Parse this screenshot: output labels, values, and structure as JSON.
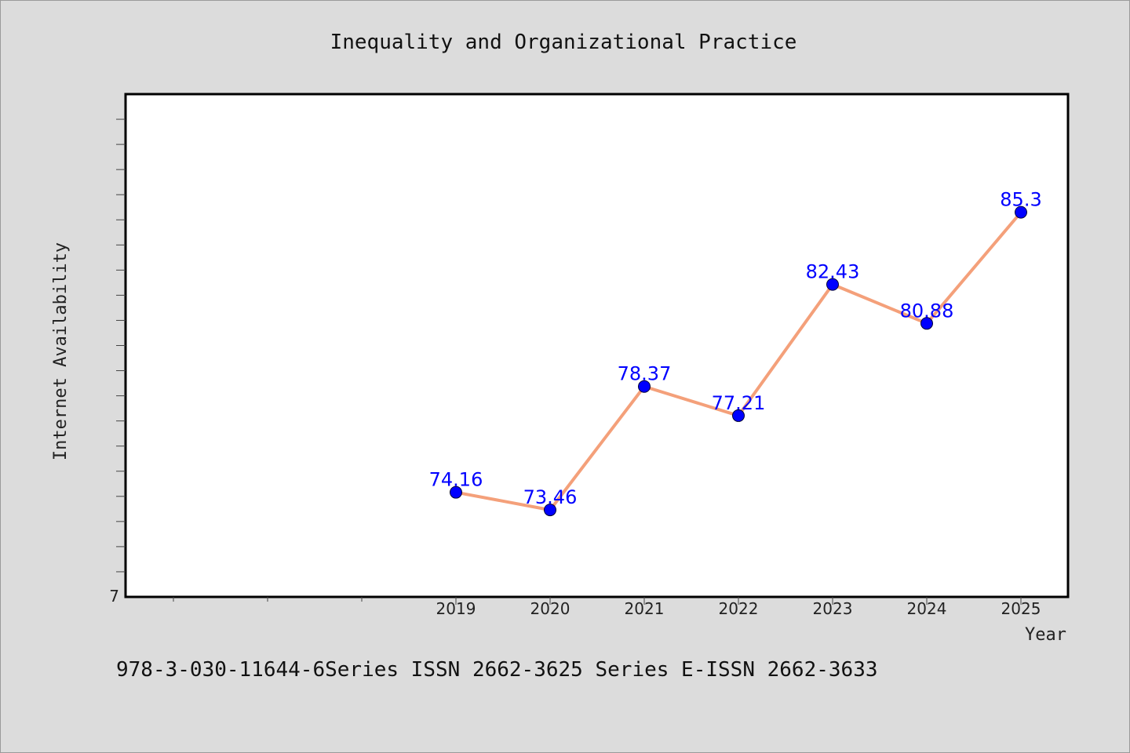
{
  "chart_data": {
    "type": "line",
    "title": "Inequality and Organizational Practice",
    "xlabel": "Year",
    "ylabel": "Internet Availability",
    "categories": [
      "2019",
      "2020",
      "2021",
      "2022",
      "2023",
      "2024",
      "2025"
    ],
    "series": [
      {
        "values": [
          74.16,
          73.46,
          78.37,
          77.21,
          82.43,
          80.88,
          85.3
        ]
      }
    ],
    "data_labels": [
      "74.16",
      "73.46",
      "78.37",
      "77.21",
      "82.43",
      "80.88",
      "85.3"
    ],
    "y_tick_label": "7",
    "ylim": [
      70,
      90
    ],
    "grid": false,
    "colors": {
      "line": "#f4a07a",
      "marker": "#0000ff",
      "data_label": "#0000ff",
      "background": "#dcdcdc",
      "plot_background": "#ffffff"
    }
  },
  "footer": "978-3-030-11644-6Series ISSN 2662-3625 Series E-ISSN 2662-3633"
}
